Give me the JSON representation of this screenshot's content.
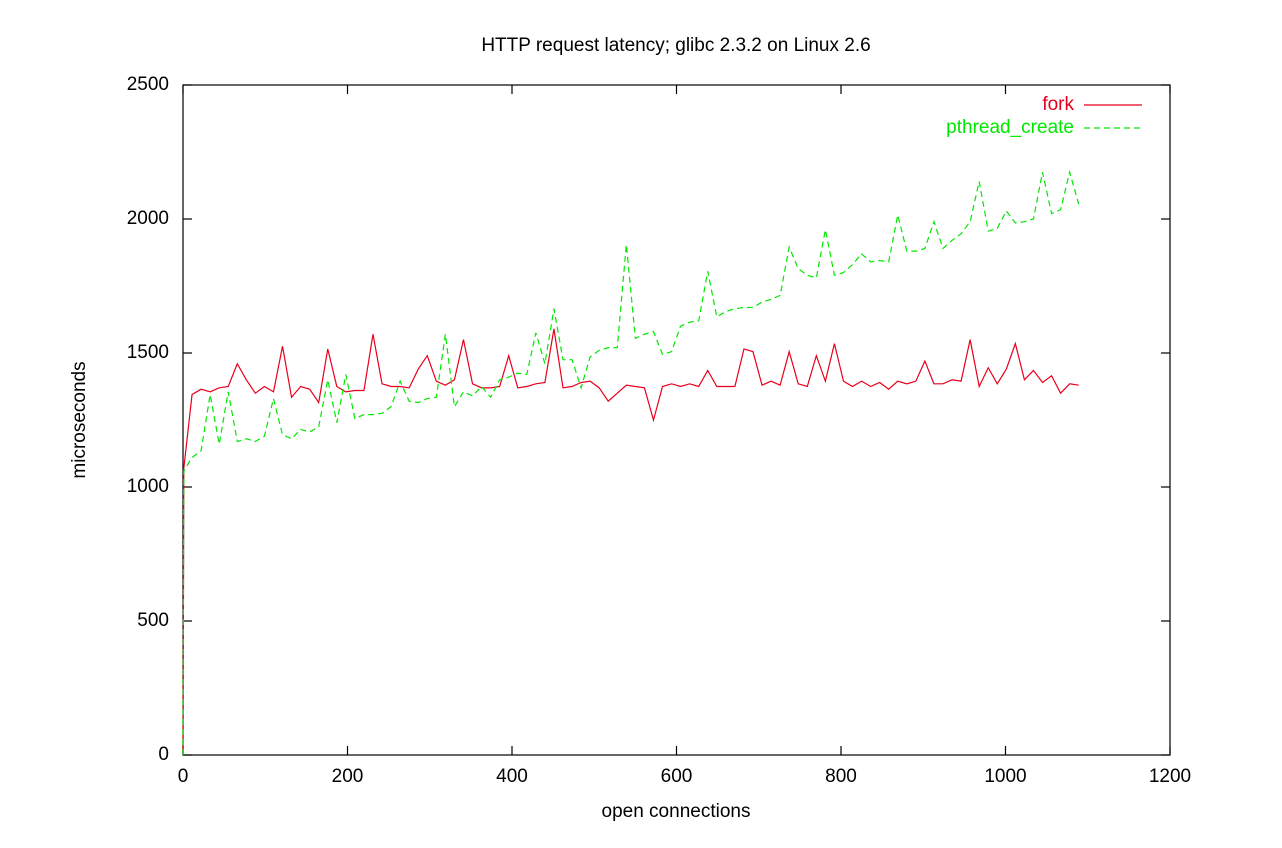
{
  "chart_data": {
    "type": "line",
    "title": "HTTP request latency; glibc 2.3.2 on Linux 2.6",
    "x_label": "open connections",
    "y_label": "microseconds",
    "x": [
      0,
      1,
      11,
      22,
      33,
      44,
      55,
      66,
      77,
      88,
      99,
      110,
      121,
      132,
      143,
      154,
      165,
      176,
      187,
      198,
      209,
      220,
      231,
      242,
      253,
      264,
      275,
      286,
      297,
      308,
      319,
      330,
      341,
      352,
      363,
      374,
      385,
      396,
      407,
      418,
      429,
      440,
      451,
      462,
      473,
      484,
      495,
      506,
      517,
      528,
      539,
      550,
      561,
      572,
      583,
      594,
      605,
      616,
      627,
      638,
      649,
      660,
      671,
      682,
      693,
      704,
      715,
      726,
      737,
      748,
      759,
      770,
      781,
      792,
      803,
      814,
      825,
      836,
      847,
      858,
      869,
      880,
      891,
      902,
      913,
      924,
      935,
      946,
      957,
      968,
      979,
      990,
      1001,
      1012,
      1023,
      1034,
      1045,
      1056,
      1067,
      1078,
      1089
    ],
    "series": [
      {
        "name": "fork",
        "color": "#e8001c",
        "dash": false,
        "values": [
          0,
          1070,
          1345,
          1365,
          1355,
          1370,
          1375,
          1460,
          1400,
          1350,
          1375,
          1355,
          1525,
          1335,
          1375,
          1365,
          1315,
          1515,
          1375,
          1355,
          1360,
          1360,
          1570,
          1385,
          1375,
          1375,
          1370,
          1440,
          1490,
          1395,
          1380,
          1400,
          1550,
          1385,
          1370,
          1370,
          1375,
          1490,
          1370,
          1375,
          1385,
          1390,
          1590,
          1370,
          1375,
          1390,
          1395,
          1370,
          1320,
          1350,
          1380,
          1375,
          1370,
          1250,
          1375,
          1385,
          1375,
          1385,
          1375,
          1435,
          1375,
          1375,
          1375,
          1515,
          1505,
          1380,
          1395,
          1380,
          1505,
          1385,
          1375,
          1490,
          1395,
          1535,
          1395,
          1375,
          1395,
          1375,
          1390,
          1365,
          1395,
          1385,
          1395,
          1470,
          1385,
          1385,
          1400,
          1395,
          1550,
          1375,
          1445,
          1385,
          1440,
          1535,
          1400,
          1435,
          1390,
          1415,
          1350,
          1385,
          1380
        ]
      },
      {
        "name": "pthread_create",
        "color": "#00e800",
        "dash": true,
        "values": [
          0,
          1060,
          1110,
          1135,
          1345,
          1160,
          1355,
          1170,
          1180,
          1170,
          1190,
          1330,
          1195,
          1180,
          1215,
          1205,
          1225,
          1400,
          1240,
          1420,
          1255,
          1270,
          1270,
          1275,
          1300,
          1395,
          1320,
          1315,
          1330,
          1335,
          1570,
          1300,
          1355,
          1340,
          1375,
          1335,
          1400,
          1410,
          1425,
          1420,
          1575,
          1460,
          1665,
          1475,
          1475,
          1370,
          1485,
          1510,
          1520,
          1520,
          1905,
          1555,
          1570,
          1580,
          1495,
          1505,
          1600,
          1615,
          1620,
          1805,
          1635,
          1655,
          1665,
          1670,
          1670,
          1690,
          1700,
          1715,
          1895,
          1815,
          1790,
          1780,
          1960,
          1790,
          1800,
          1830,
          1870,
          1840,
          1845,
          1840,
          2015,
          1880,
          1880,
          1890,
          1990,
          1890,
          1920,
          1945,
          1990,
          2140,
          1955,
          1965,
          2030,
          1985,
          1990,
          2000,
          2175,
          2020,
          2035,
          2175,
          2055
        ]
      }
    ],
    "xlim": [
      0,
      1200
    ],
    "xticks": [
      0,
      200,
      400,
      600,
      800,
      1000,
      1200
    ],
    "ylim": [
      0,
      2500
    ],
    "yticks": [
      0,
      500,
      1000,
      1500,
      2000,
      2500
    ],
    "legend": "top-right",
    "grid": false
  }
}
